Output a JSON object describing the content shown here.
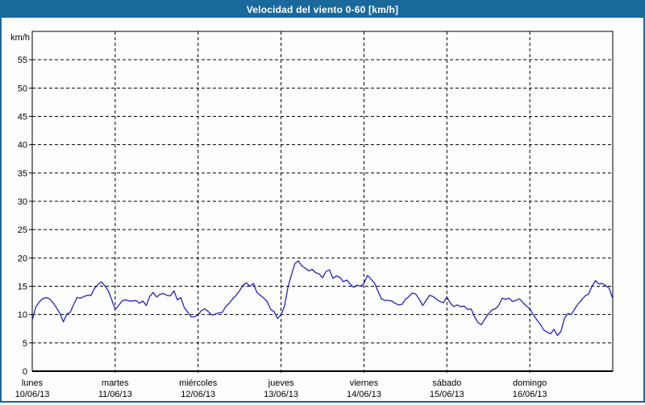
{
  "window": {
    "title": "Velocidad del viento 0-60 [km/h]"
  },
  "colors": {
    "titlebar_background": "#1a699c",
    "outer_border": "#1a699c",
    "series_line": "#2323c0",
    "grid": "#000000",
    "text": "#000000",
    "background": "#fdfdfd",
    "plot_background": "#fdfdfd"
  },
  "chart_data": {
    "type": "line",
    "title": "Velocidad del viento 0-60 [km/h]",
    "ylabel": "km/h",
    "xlabel": "",
    "ylim": [
      0,
      60
    ],
    "yticks": [
      0,
      5,
      10,
      15,
      20,
      25,
      30,
      35,
      40,
      45,
      50,
      55
    ],
    "grid": true,
    "grid_style": "dashed",
    "legend": false,
    "x_unit": "hours",
    "points_per_day": 24,
    "days": [
      {
        "name": "lunes",
        "date": "10/06/13"
      },
      {
        "name": "martes",
        "date": "11/06/13"
      },
      {
        "name": "miércoles",
        "date": "12/06/13"
      },
      {
        "name": "jueves",
        "date": "13/06/13"
      },
      {
        "name": "viernes",
        "date": "14/06/13"
      },
      {
        "name": "sábado",
        "date": "15/06/13"
      },
      {
        "name": "domingo",
        "date": "16/06/13"
      }
    ],
    "values": [
      9.0,
      11.3,
      12.2,
      12.8,
      13.0,
      12.8,
      12.1,
      11.2,
      10.2,
      8.7,
      10.1,
      10.4,
      11.8,
      13.0,
      12.9,
      13.2,
      13.4,
      13.4,
      14.6,
      15.3,
      15.8,
      15.1,
      14.2,
      12.6,
      10.9,
      11.6,
      12.4,
      12.6,
      12.4,
      12.4,
      12.5,
      12.0,
      12.4,
      11.6,
      13.2,
      13.9,
      13.1,
      13.6,
      13.7,
      13.4,
      13.3,
      14.2,
      12.6,
      13.0,
      11.2,
      10.4,
      9.6,
      9.6,
      10.0,
      10.7,
      11.0,
      10.5,
      9.9,
      10.1,
      10.3,
      10.4,
      11.4,
      12.0,
      12.8,
      13.4,
      14.2,
      15.2,
      15.6,
      15.0,
      15.5,
      13.9,
      13.4,
      12.9,
      12.3,
      10.9,
      10.5,
      9.3,
      10.0,
      11.5,
      14.8,
      17.0,
      19.0,
      19.5,
      18.6,
      18.2,
      17.7,
      18.0,
      17.4,
      17.2,
      16.5,
      17.6,
      17.9,
      16.4,
      16.8,
      16.6,
      15.8,
      16.1,
      15.4,
      14.8,
      15.2,
      15.0,
      15.5,
      16.9,
      16.3,
      15.6,
      14.2,
      12.8,
      12.5,
      12.5,
      12.4,
      12.0,
      11.7,
      11.8,
      12.7,
      13.2,
      13.8,
      13.6,
      12.7,
      11.6,
      12.5,
      13.4,
      13.2,
      12.7,
      12.3,
      12.1,
      13.1,
      12.0,
      11.4,
      11.7,
      11.4,
      11.5,
      10.9,
      11.0,
      9.6,
      8.6,
      8.2,
      9.2,
      10.1,
      10.8,
      11.0,
      11.6,
      12.9,
      12.7,
      12.9,
      12.3,
      12.5,
      12.8,
      12.1,
      11.5,
      11.0,
      10.0,
      9.1,
      8.3,
      7.3,
      6.9,
      6.6,
      7.4,
      6.3,
      7.0,
      9.3,
      10.2,
      10.0,
      11.0,
      11.9,
      12.6,
      13.3,
      13.6,
      15.0,
      16.0,
      15.4,
      15.5,
      15.1,
      14.6,
      12.8
    ]
  }
}
